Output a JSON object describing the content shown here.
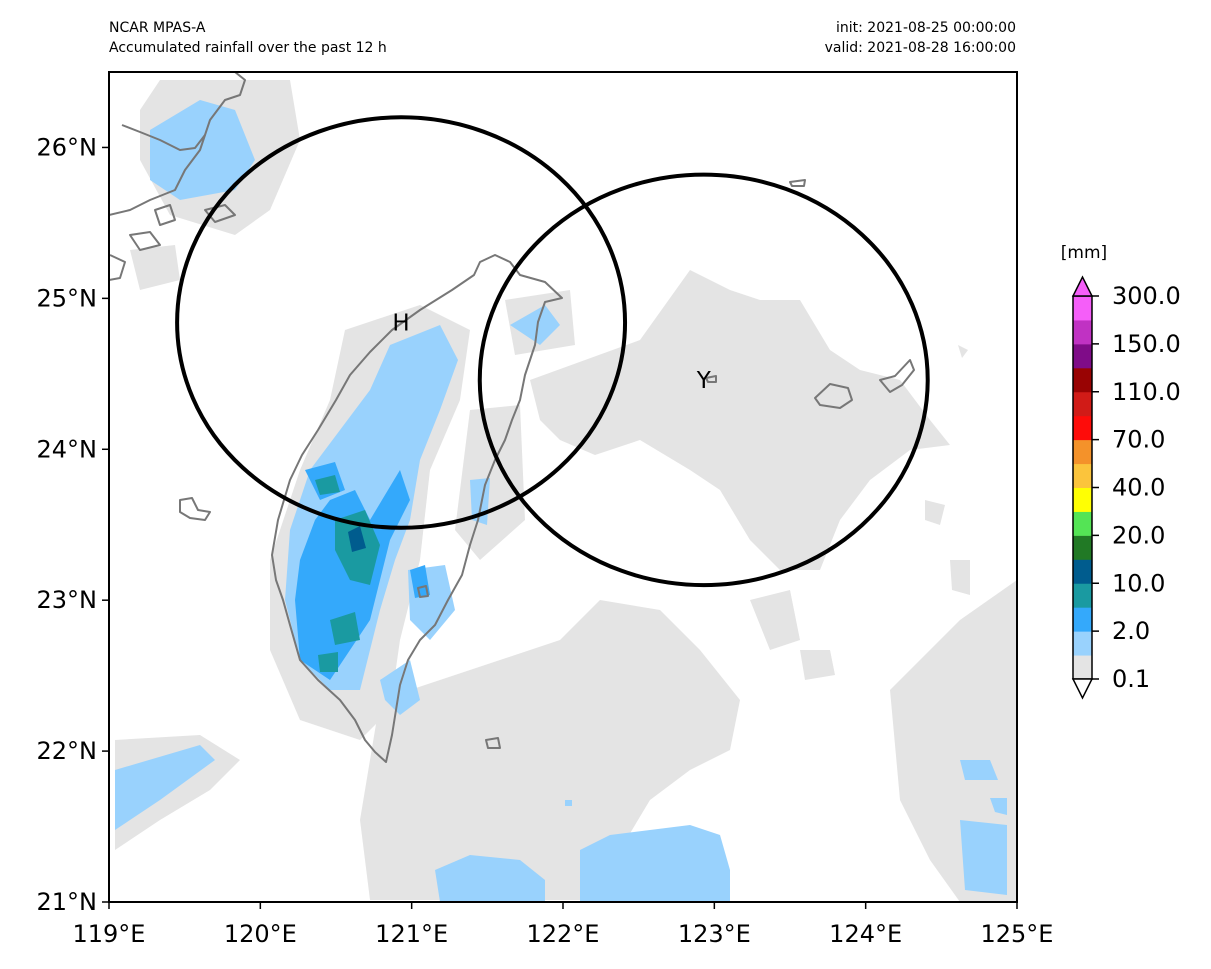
{
  "header": {
    "left_line1": "NCAR MPAS-A",
    "left_line2": "Accumulated rainfall over the past 12 h",
    "right_line1": "init: 2021-08-25 00:00:00",
    "right_line2": "valid: 2021-08-28 16:00:00"
  },
  "map": {
    "lon_range": [
      119,
      125
    ],
    "lat_range": [
      21,
      26.5
    ],
    "x_ticks": [
      "119°E",
      "120°E",
      "121°E",
      "122°E",
      "123°E",
      "124°E",
      "125°E"
    ],
    "y_ticks": [
      "21°N",
      "22°N",
      "23°N",
      "24°N",
      "25°N",
      "26°N"
    ],
    "circles": [
      {
        "label": "H",
        "center_lon": 120.93,
        "center_lat": 24.84,
        "radius_lon": 1.48,
        "radius_lat": 1.36
      },
      {
        "label": "Y",
        "center_lon": 122.93,
        "center_lat": 24.46,
        "radius_lon": 1.48,
        "radius_lat": 1.36
      }
    ]
  },
  "colorbar": {
    "unit": "[mm]",
    "tick_labels": [
      "300.0",
      "150.0",
      "110.0",
      "70.0",
      "40.0",
      "20.0",
      "10.0",
      "2.0",
      "0.1"
    ],
    "level_colors": [
      "#e4e4e4",
      "#99d2fd",
      "#34a9fb",
      "#1a9aa1",
      "#005c8e",
      "#217925",
      "#54e455",
      "#ffff03",
      "#fbc43c",
      "#f4922a",
      "#fe0c0a",
      "#d11b17",
      "#990303",
      "#7f0c88",
      "#c032c3",
      "#f55ef9"
    ],
    "under_color": "#ffffff",
    "over_color": "#f55ef9"
  }
}
